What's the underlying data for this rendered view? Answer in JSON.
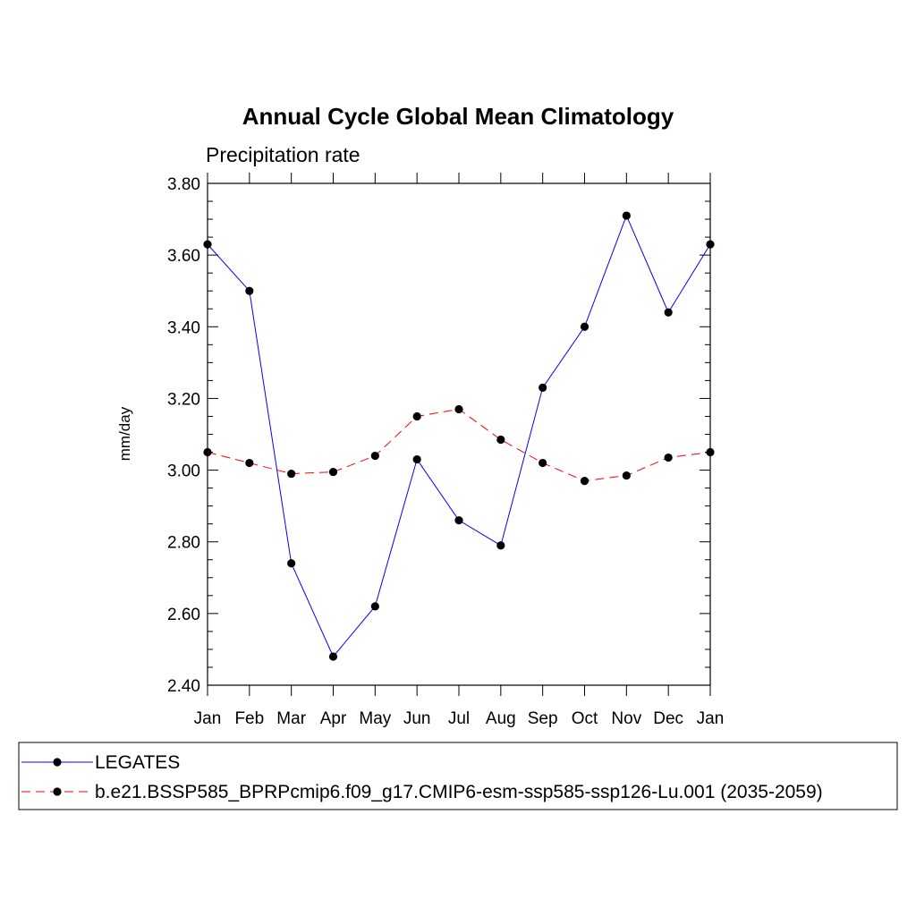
{
  "chart_data": {
    "type": "line",
    "title": "Annual Cycle Global Mean Climatology",
    "subtitle": "Precipitation rate",
    "xlabel": "",
    "ylabel": "mm/day",
    "ylim": [
      2.4,
      3.8
    ],
    "y_ticks": [
      "2.40",
      "2.60",
      "2.80",
      "3.00",
      "3.20",
      "3.40",
      "3.60",
      "3.80"
    ],
    "y_tick_values": [
      2.4,
      2.6,
      2.8,
      3.0,
      3.2,
      3.4,
      3.6,
      3.8
    ],
    "categories": [
      "Jan",
      "Feb",
      "Mar",
      "Apr",
      "May",
      "Jun",
      "Jul",
      "Aug",
      "Sep",
      "Oct",
      "Nov",
      "Dec",
      "Jan"
    ],
    "series": [
      {
        "name": "LEGATES",
        "color": "#0000ff",
        "style": "solid",
        "values": [
          3.63,
          3.5,
          2.74,
          2.48,
          2.62,
          3.03,
          2.86,
          2.79,
          3.23,
          3.4,
          3.71,
          3.44,
          3.63
        ]
      },
      {
        "name": "b.e21.BSSP585_BPRPcmip6.f09_g17.CMIP6-esm-ssp585-ssp126-Lu.001 (2035-2059)",
        "color": "#ff0000",
        "style": "dashed",
        "values": [
          3.05,
          3.02,
          2.99,
          2.995,
          3.04,
          3.15,
          3.17,
          3.085,
          3.02,
          2.97,
          2.985,
          3.035,
          3.05
        ]
      }
    ],
    "grid": false,
    "legend_position": "bottom"
  }
}
